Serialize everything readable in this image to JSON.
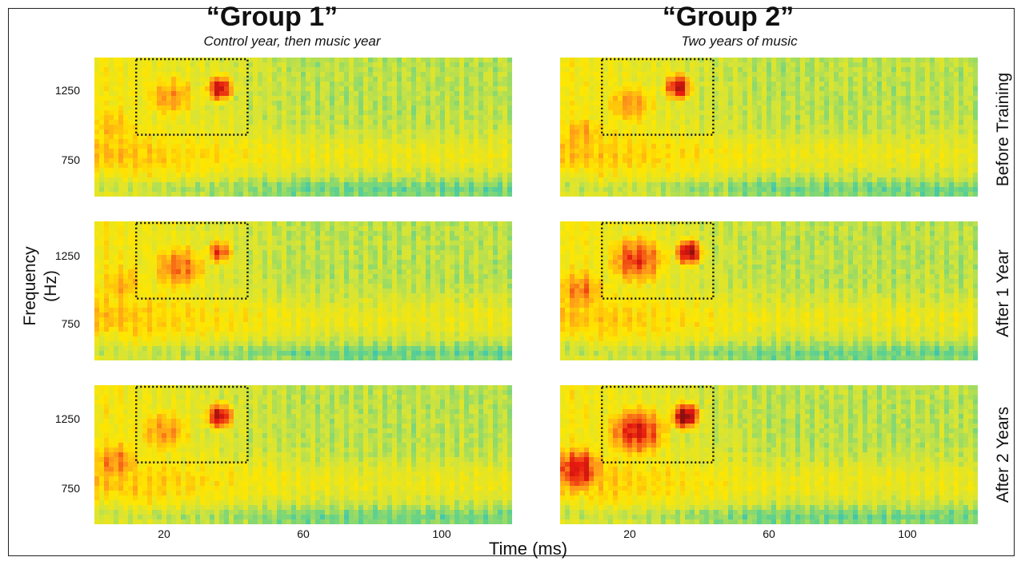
{
  "figure": {
    "groups": [
      {
        "title": "“Group 1”",
        "subtitle": "Control year, then music year"
      },
      {
        "title": "“Group 2”",
        "subtitle": "Two years of music"
      }
    ],
    "row_labels": [
      "Before Training",
      "After 1 Year",
      "After 2 Years"
    ],
    "ylabel": "Frequency (Hz)",
    "xlabel": "Time (ms)",
    "y_ticks": [
      "1250",
      "750"
    ],
    "x_ticks": [
      "20",
      "60",
      "100"
    ]
  },
  "chart_data": {
    "type": "heatmap",
    "xlabel": "Time (ms)",
    "ylabel": "Frequency (Hz)",
    "xlim": [
      0,
      120
    ],
    "ylim": [
      550,
      1450
    ],
    "x_ticks": [
      20,
      60,
      100
    ],
    "y_ticks": [
      750,
      1250
    ],
    "columns": [
      "“Group 1”",
      "“Group 2”"
    ],
    "rows": [
      "Before Training",
      "After 1 Year",
      "After 2 Years"
    ],
    "roi_box": {
      "time_ms": [
        12,
        44
      ],
      "freq_hz": [
        950,
        1450
      ]
    },
    "colormap": [
      "#12b4e0",
      "#5fd18e",
      "#d4e43a",
      "#ffe600",
      "#ff9a1a",
      "#e81a10",
      "#8a0f0f"
    ],
    "panels": [
      {
        "group": "“Group 1”",
        "row": "Before Training",
        "peak": {
          "time_ms": 36,
          "freq_hz": 1250,
          "level": 0.9
        },
        "blobs": [
          {
            "time_ms": 22,
            "freq_hz": 1200,
            "level": 0.65
          },
          {
            "time_ms": 5,
            "freq_hz": 1000,
            "level": 0.6
          }
        ]
      },
      {
        "group": "“Group 2”",
        "row": "Before Training",
        "peak": {
          "time_ms": 34,
          "freq_hz": 1260,
          "level": 0.92
        },
        "blobs": [
          {
            "time_ms": 20,
            "freq_hz": 1150,
            "level": 0.65
          },
          {
            "time_ms": 6,
            "freq_hz": 950,
            "level": 0.62
          }
        ]
      },
      {
        "group": "“Group 1”",
        "row": "After 1 Year",
        "peak": {
          "time_ms": 36,
          "freq_hz": 1250,
          "level": 0.8
        },
        "blobs": [
          {
            "time_ms": 24,
            "freq_hz": 1150,
            "level": 0.72
          },
          {
            "time_ms": 8,
            "freq_hz": 1050,
            "level": 0.62
          }
        ]
      },
      {
        "group": "“Group 2”",
        "row": "After 1 Year",
        "peak": {
          "time_ms": 37,
          "freq_hz": 1250,
          "level": 0.95
        },
        "blobs": [
          {
            "time_ms": 22,
            "freq_hz": 1200,
            "level": 0.8
          },
          {
            "time_ms": 6,
            "freq_hz": 1000,
            "level": 0.7
          }
        ]
      },
      {
        "group": "“Group 1”",
        "row": "After 2 Years",
        "peak": {
          "time_ms": 36,
          "freq_hz": 1250,
          "level": 0.92
        },
        "blobs": [
          {
            "time_ms": 20,
            "freq_hz": 1150,
            "level": 0.66
          },
          {
            "time_ms": 6,
            "freq_hz": 950,
            "level": 0.7
          }
        ]
      },
      {
        "group": "“Group 2”",
        "row": "After 2 Years",
        "peak": {
          "time_ms": 36,
          "freq_hz": 1250,
          "level": 1.0
        },
        "blobs": [
          {
            "time_ms": 22,
            "freq_hz": 1150,
            "level": 0.85
          },
          {
            "time_ms": 5,
            "freq_hz": 900,
            "level": 0.85
          }
        ]
      }
    ]
  }
}
